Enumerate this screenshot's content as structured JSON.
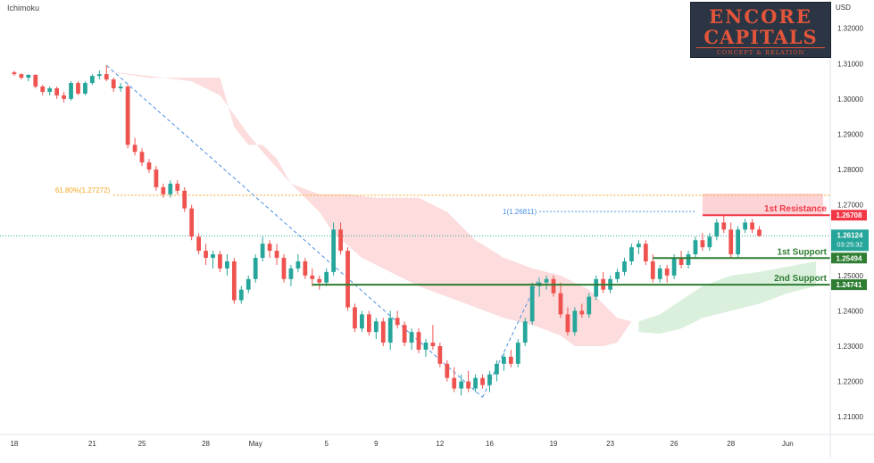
{
  "indicator": "Ichimoku",
  "currency": "USD",
  "logo": {
    "line1": "ENCORE",
    "line2": "CAPITALS",
    "tagline": "CONCEPT & RELATION"
  },
  "colors": {
    "bull": "#26a69a",
    "bear": "#ef5350",
    "resistance": "#f23645",
    "support": "#2e7d32",
    "fib": "#f5a623",
    "trend": "#4a90e2",
    "price_badge": "#26a69a",
    "cloud_bear": "#fbd6d6",
    "cloud_bull": "#d4edd6",
    "resistance_zone": "#fccfd3"
  },
  "chart_data": {
    "type": "candlestick",
    "ylim": [
      1.205,
      1.328
    ],
    "y_ticks": [
      {
        "value": 1.32,
        "label": "1.32000"
      },
      {
        "value": 1.31,
        "label": "1.31000"
      },
      {
        "value": 1.3,
        "label": "1.30000"
      },
      {
        "value": 1.29,
        "label": "1.29000"
      },
      {
        "value": 1.28,
        "label": "1.28000"
      },
      {
        "value": 1.27,
        "label": "1.27000"
      },
      {
        "value": 1.25,
        "label": "1.25000"
      },
      {
        "value": 1.24,
        "label": "1.24000"
      },
      {
        "value": 1.23,
        "label": "1.23000"
      },
      {
        "value": 1.22,
        "label": "1.22000"
      },
      {
        "value": 1.21,
        "label": "1.21000"
      }
    ],
    "x_ticks": [
      {
        "index": 1,
        "label": "18"
      },
      {
        "index": 12,
        "label": "21"
      },
      {
        "index": 19,
        "label": "25"
      },
      {
        "index": 28,
        "label": "28"
      },
      {
        "index": 35,
        "label": "May"
      },
      {
        "index": 45,
        "label": "5"
      },
      {
        "index": 52,
        "label": "9"
      },
      {
        "index": 61,
        "label": "12"
      },
      {
        "index": 68,
        "label": "16"
      },
      {
        "index": 77,
        "label": "19"
      },
      {
        "index": 85,
        "label": "23"
      },
      {
        "index": 94,
        "label": "26"
      },
      {
        "index": 102,
        "label": "28"
      },
      {
        "index": 110,
        "label": "Jun"
      }
    ],
    "x_range": [
      0,
      116
    ],
    "current_price": {
      "value": 1.26124,
      "label": "1.26124",
      "countdown": "03:25:32"
    },
    "levels": [
      {
        "name": "1st Resistance",
        "value": 1.26708,
        "label": "1.26708",
        "kind": "resistance",
        "from": 98
      },
      {
        "name": "1st Support",
        "value": 1.25494,
        "label": "1.25494",
        "kind": "support",
        "from": 91
      },
      {
        "name": "2nd Support",
        "value": 1.24741,
        "label": "1.24741",
        "kind": "support",
        "from": 43
      }
    ],
    "fibonacci": {
      "label": "61.80%(1.27272)",
      "value": 1.27272,
      "from": 15
    },
    "projection": {
      "label": "1(1.26811)",
      "value": 1.26811,
      "from": 75,
      "to": 97
    },
    "resistance_zone": {
      "from": 98,
      "to": 115,
      "top": 1.2732,
      "bottom": 1.26708
    },
    "trendlines": [
      {
        "from": [
          14,
          1.3095
        ],
        "to": [
          67,
          1.2155
        ]
      },
      {
        "from": [
          67,
          1.2155
        ],
        "to": [
          75,
          1.2495
        ]
      }
    ],
    "cloud_bear": {
      "upper": [
        [
          13,
          1.308
        ],
        [
          20,
          1.306
        ],
        [
          30,
          1.306
        ],
        [
          32,
          1.292
        ],
        [
          34,
          1.287
        ],
        [
          36,
          1.287
        ],
        [
          38,
          1.283
        ],
        [
          40,
          1.276
        ],
        [
          44,
          1.273
        ],
        [
          48,
          1.273
        ],
        [
          52,
          1.272
        ],
        [
          58,
          1.272
        ],
        [
          62,
          1.268
        ],
        [
          66,
          1.26
        ],
        [
          70,
          1.255
        ],
        [
          74,
          1.252
        ],
        [
          78,
          1.25
        ],
        [
          82,
          1.246
        ],
        [
          86,
          1.238
        ],
        [
          88,
          1.237
        ]
      ],
      "lower": [
        [
          88,
          1.237
        ],
        [
          86,
          1.231
        ],
        [
          84,
          1.23
        ],
        [
          80,
          1.23
        ],
        [
          78,
          1.233
        ],
        [
          74,
          1.236
        ],
        [
          70,
          1.238
        ],
        [
          66,
          1.241
        ],
        [
          62,
          1.244
        ],
        [
          58,
          1.247
        ],
        [
          54,
          1.251
        ],
        [
          50,
          1.255
        ],
        [
          46,
          1.262
        ],
        [
          44,
          1.268
        ],
        [
          42,
          1.272
        ],
        [
          40,
          1.276
        ],
        [
          36,
          1.285
        ],
        [
          34,
          1.29
        ],
        [
          30,
          1.301
        ],
        [
          26,
          1.305
        ],
        [
          20,
          1.3065
        ],
        [
          13,
          1.308
        ]
      ]
    },
    "cloud_bull": {
      "upper": [
        [
          89,
          1.237
        ],
        [
          92,
          1.239
        ],
        [
          95,
          1.243
        ],
        [
          98,
          1.247
        ],
        [
          102,
          1.25
        ],
        [
          106,
          1.251
        ],
        [
          110,
          1.2525
        ],
        [
          114,
          1.254
        ]
      ],
      "lower": [
        [
          114,
          1.247
        ],
        [
          110,
          1.245
        ],
        [
          106,
          1.242
        ],
        [
          102,
          1.24
        ],
        [
          98,
          1.238
        ],
        [
          95,
          1.235
        ],
        [
          92,
          1.2335
        ],
        [
          89,
          1.234
        ]
      ]
    },
    "candles": [
      [
        1.3075,
        1.308,
        1.3065,
        1.307
      ],
      [
        1.307,
        1.3072,
        1.3055,
        1.306
      ],
      [
        1.306,
        1.307,
        1.305,
        1.3068
      ],
      [
        1.3068,
        1.307,
        1.303,
        1.3035
      ],
      [
        1.3035,
        1.304,
        1.301,
        1.302
      ],
      [
        1.302,
        1.3035,
        1.301,
        1.303
      ],
      [
        1.303,
        1.3035,
        1.3,
        1.301
      ],
      [
        1.301,
        1.302,
        1.299,
        1.3
      ],
      [
        1.3,
        1.305,
        1.2995,
        1.3045
      ],
      [
        1.3045,
        1.305,
        1.301,
        1.3015
      ],
      [
        1.3015,
        1.305,
        1.301,
        1.3045
      ],
      [
        1.3045,
        1.307,
        1.304,
        1.3065
      ],
      [
        1.3065,
        1.308,
        1.3055,
        1.307
      ],
      [
        1.307,
        1.3095,
        1.305,
        1.3055
      ],
      [
        1.3055,
        1.306,
        1.302,
        1.303
      ],
      [
        1.303,
        1.3045,
        1.302,
        1.3035
      ],
      [
        1.3035,
        1.304,
        1.286,
        1.287
      ],
      [
        1.287,
        1.289,
        1.284,
        1.285
      ],
      [
        1.285,
        1.286,
        1.281,
        1.282
      ],
      [
        1.282,
        1.283,
        1.279,
        1.28
      ],
      [
        1.28,
        1.281,
        1.274,
        1.275
      ],
      [
        1.275,
        1.276,
        1.272,
        1.273
      ],
      [
        1.273,
        1.277,
        1.272,
        1.276
      ],
      [
        1.276,
        1.277,
        1.273,
        1.274
      ],
      [
        1.274,
        1.275,
        1.268,
        1.269
      ],
      [
        1.269,
        1.27,
        1.26,
        1.261
      ],
      [
        1.261,
        1.262,
        1.256,
        1.257
      ],
      [
        1.257,
        1.259,
        1.253,
        1.255
      ],
      [
        1.255,
        1.257,
        1.252,
        1.256
      ],
      [
        1.256,
        1.257,
        1.251,
        1.252
      ],
      [
        1.252,
        1.256,
        1.25,
        1.254
      ],
      [
        1.254,
        1.255,
        1.242,
        1.243
      ],
      [
        1.243,
        1.247,
        1.242,
        1.246
      ],
      [
        1.246,
        1.25,
        1.245,
        1.249
      ],
      [
        1.249,
        1.256,
        1.248,
        1.255
      ],
      [
        1.255,
        1.261,
        1.254,
        1.259
      ],
      [
        1.259,
        1.26,
        1.255,
        1.257
      ],
      [
        1.257,
        1.259,
        1.253,
        1.255
      ],
      [
        1.255,
        1.256,
        1.248,
        1.249
      ],
      [
        1.249,
        1.253,
        1.247,
        1.252
      ],
      [
        1.252,
        1.256,
        1.251,
        1.254
      ],
      [
        1.254,
        1.255,
        1.249,
        1.25
      ],
      [
        1.25,
        1.252,
        1.247,
        1.249
      ],
      [
        1.249,
        1.25,
        1.246,
        1.248
      ],
      [
        1.248,
        1.252,
        1.247,
        1.251
      ],
      [
        1.251,
        1.265,
        1.25,
        1.263
      ],
      [
        1.263,
        1.265,
        1.256,
        1.257
      ],
      [
        1.257,
        1.258,
        1.24,
        1.241
      ],
      [
        1.241,
        1.242,
        1.234,
        1.235
      ],
      [
        1.235,
        1.24,
        1.234,
        1.239
      ],
      [
        1.239,
        1.24,
        1.233,
        1.234
      ],
      [
        1.234,
        1.238,
        1.232,
        1.237
      ],
      [
        1.237,
        1.238,
        1.23,
        1.231
      ],
      [
        1.231,
        1.24,
        1.229,
        1.238
      ],
      [
        1.238,
        1.24,
        1.235,
        1.236
      ],
      [
        1.236,
        1.237,
        1.23,
        1.231
      ],
      [
        1.231,
        1.235,
        1.229,
        1.234
      ],
      [
        1.234,
        1.235,
        1.228,
        1.229
      ],
      [
        1.229,
        1.232,
        1.227,
        1.231
      ],
      [
        1.231,
        1.236,
        1.229,
        1.23
      ],
      [
        1.23,
        1.231,
        1.224,
        1.225
      ],
      [
        1.225,
        1.226,
        1.22,
        1.221
      ],
      [
        1.221,
        1.224,
        1.217,
        1.218
      ],
      [
        1.218,
        1.222,
        1.216,
        1.22
      ],
      [
        1.22,
        1.223,
        1.217,
        1.218
      ],
      [
        1.218,
        1.222,
        1.217,
        1.221
      ],
      [
        1.221,
        1.222,
        1.218,
        1.219
      ],
      [
        1.219,
        1.223,
        1.217,
        1.222
      ],
      [
        1.222,
        1.226,
        1.22,
        1.225
      ],
      [
        1.225,
        1.228,
        1.223,
        1.227
      ],
      [
        1.227,
        1.229,
        1.224,
        1.225
      ],
      [
        1.225,
        1.232,
        1.224,
        1.231
      ],
      [
        1.231,
        1.238,
        1.23,
        1.237
      ],
      [
        1.237,
        1.248,
        1.236,
        1.247
      ],
      [
        1.247,
        1.249,
        1.244,
        1.248
      ],
      [
        1.248,
        1.25,
        1.246,
        1.249
      ],
      [
        1.249,
        1.25,
        1.244,
        1.245
      ],
      [
        1.245,
        1.248,
        1.238,
        1.239
      ],
      [
        1.239,
        1.241,
        1.233,
        1.234
      ],
      [
        1.234,
        1.241,
        1.233,
        1.24
      ],
      [
        1.24,
        1.242,
        1.238,
        1.239
      ],
      [
        1.239,
        1.245,
        1.238,
        1.244
      ],
      [
        1.244,
        1.25,
        1.243,
        1.249
      ],
      [
        1.249,
        1.251,
        1.245,
        1.246
      ],
      [
        1.246,
        1.25,
        1.245,
        1.249
      ],
      [
        1.249,
        1.252,
        1.248,
        1.251
      ],
      [
        1.251,
        1.255,
        1.25,
        1.254
      ],
      [
        1.254,
        1.259,
        1.253,
        1.258
      ],
      [
        1.258,
        1.26,
        1.256,
        1.259
      ],
      [
        1.259,
        1.26,
        1.253,
        1.254
      ],
      [
        1.254,
        1.256,
        1.248,
        1.249
      ],
      [
        1.249,
        1.253,
        1.248,
        1.252
      ],
      [
        1.252,
        1.253,
        1.248,
        1.25
      ],
      [
        1.25,
        1.256,
        1.249,
        1.255
      ],
      [
        1.255,
        1.257,
        1.252,
        1.253
      ],
      [
        1.253,
        1.257,
        1.252,
        1.256
      ],
      [
        1.256,
        1.261,
        1.255,
        1.26
      ],
      [
        1.26,
        1.262,
        1.257,
        1.258
      ],
      [
        1.258,
        1.262,
        1.257,
        1.261
      ],
      [
        1.261,
        1.266,
        1.26,
        1.265
      ],
      [
        1.265,
        1.267,
        1.262,
        1.263
      ],
      [
        1.263,
        1.265,
        1.255,
        1.256
      ],
      [
        1.256,
        1.264,
        1.255,
        1.263
      ],
      [
        1.263,
        1.266,
        1.262,
        1.265
      ],
      [
        1.265,
        1.266,
        1.262,
        1.263
      ],
      [
        1.263,
        1.264,
        1.261,
        1.2612
      ]
    ]
  }
}
